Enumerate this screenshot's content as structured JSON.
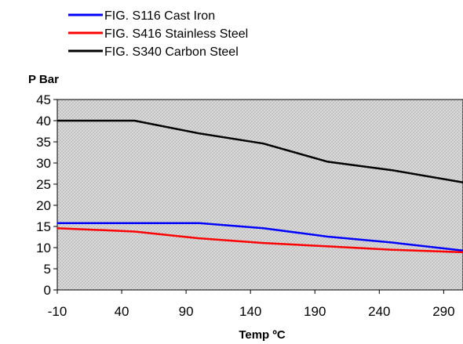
{
  "chart_data": {
    "type": "line",
    "title": "",
    "ylabel": "P Bar",
    "xlabel": "Temp ºC",
    "xlim": [
      -10,
      305
    ],
    "ylim": [
      0,
      45
    ],
    "x_ticks": [
      -10,
      40,
      90,
      140,
      190,
      240,
      290
    ],
    "y_ticks": [
      0,
      5,
      10,
      15,
      20,
      25,
      30,
      35,
      40,
      45
    ],
    "grid": false,
    "plot_background": "hatched-grey",
    "legend_position": "top",
    "series": [
      {
        "name": "FIG. S116 Cast Iron",
        "color": "#0000ff",
        "points": [
          [
            -10,
            15.8
          ],
          [
            50,
            15.8
          ],
          [
            100,
            15.8
          ],
          [
            150,
            14.6
          ],
          [
            200,
            12.6
          ],
          [
            250,
            11.2
          ],
          [
            305,
            9.3
          ]
        ]
      },
      {
        "name": "FIG. S416 Stainless Steel",
        "color": "#ff0000",
        "points": [
          [
            -10,
            14.6
          ],
          [
            50,
            13.8
          ],
          [
            100,
            12.2
          ],
          [
            150,
            11.1
          ],
          [
            200,
            10.3
          ],
          [
            250,
            9.5
          ],
          [
            305,
            8.9
          ]
        ]
      },
      {
        "name": "FIG. S340 Carbon Steel",
        "color": "#000000",
        "points": [
          [
            -10,
            40
          ],
          [
            50,
            40
          ],
          [
            100,
            37
          ],
          [
            150,
            34.6
          ],
          [
            200,
            30.3
          ],
          [
            250,
            28.3
          ],
          [
            305,
            25.4
          ]
        ]
      }
    ]
  }
}
